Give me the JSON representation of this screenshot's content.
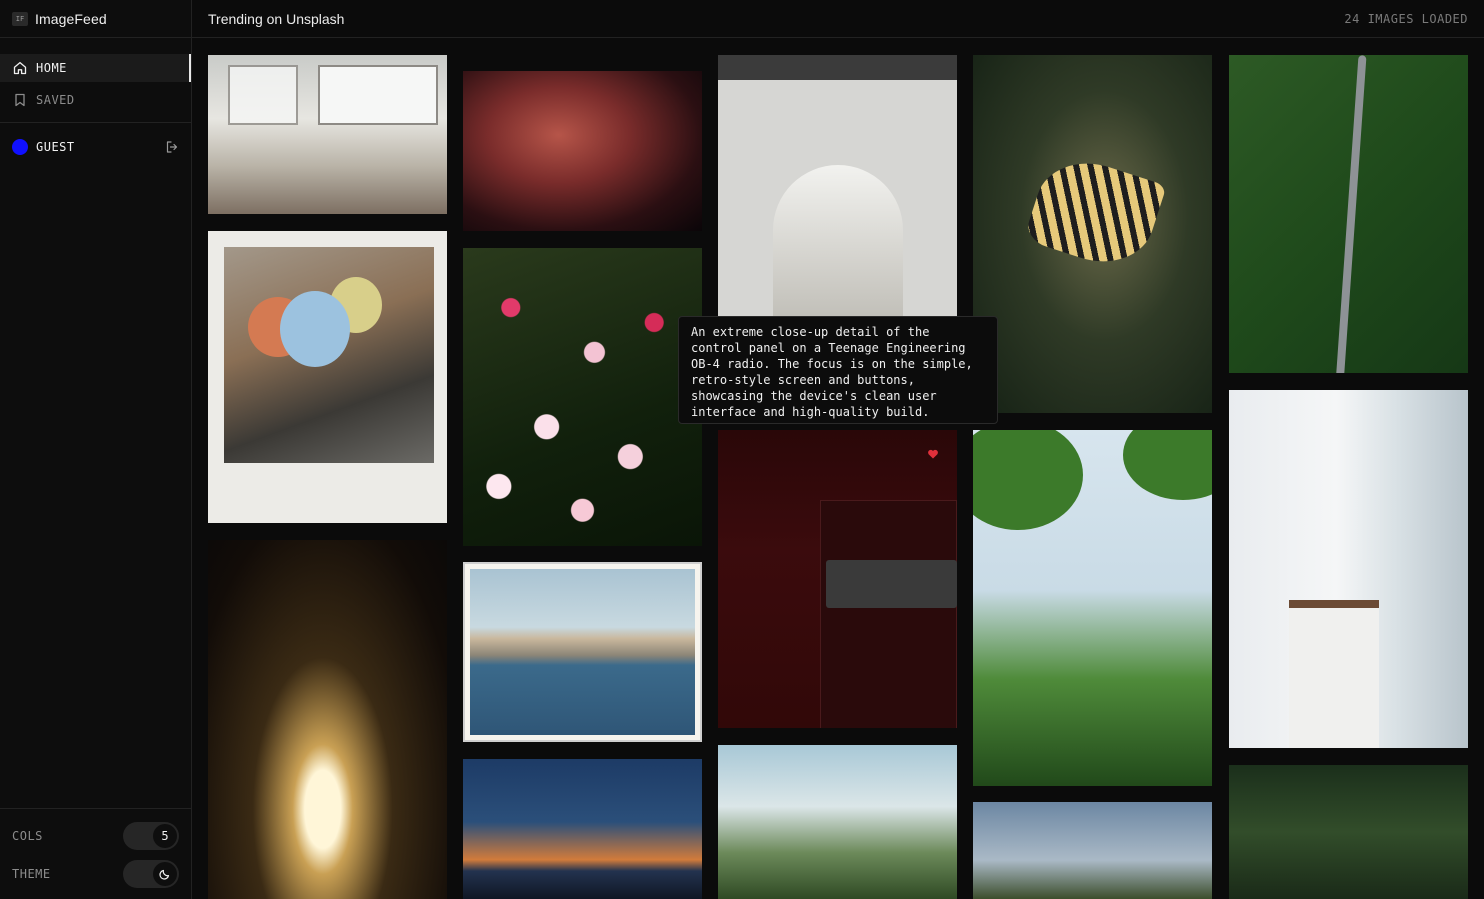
{
  "app": {
    "badge": "IF",
    "name": "ImageFeed"
  },
  "header": {
    "title": "Trending on Unsplash",
    "count": "24 IMAGES LOADED"
  },
  "sidebar": {
    "nav": [
      {
        "label": "HOME",
        "icon": "home-icon",
        "active": true
      },
      {
        "label": "SAVED",
        "icon": "bookmark-icon",
        "active": false
      }
    ],
    "user": {
      "name": "GUEST",
      "avatar_color": "#1010ff",
      "logout_icon": "logout-icon"
    },
    "controls": {
      "cols_label": "COLS",
      "cols_value": "5",
      "theme_label": "THEME",
      "theme_icon": "moon-icon"
    }
  },
  "tooltip": {
    "text": "An extreme close-up detail of the\ncontrol panel on a Teenage Engineering\nOB-4 radio. The focus is on the simple,\nretro-style screen and buttons,\nshowcasing the device's clean user\ninterface and high-quality build."
  },
  "colors": {
    "accent": "#1010ff",
    "saved_heart": "#e0303b"
  }
}
